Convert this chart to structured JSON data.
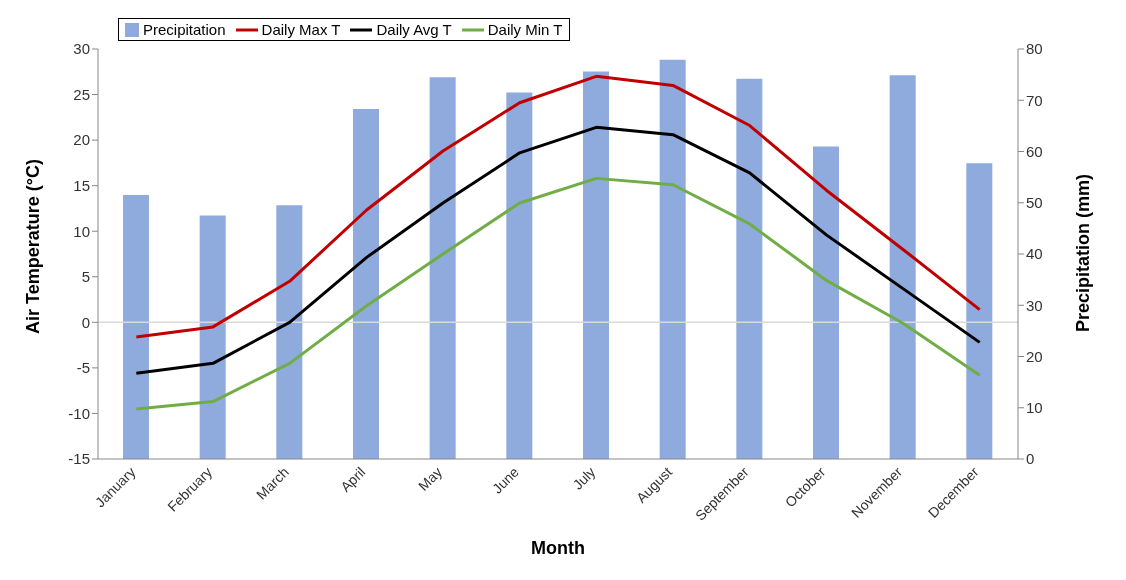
{
  "chart_data": {
    "type": "line",
    "xlabel": "Month",
    "ylabel": "Air Temperature (°C)",
    "y2label": "Precipitation (mm)",
    "categories": [
      "January",
      "February",
      "March",
      "April",
      "May",
      "June",
      "July",
      "August",
      "September",
      "October",
      "November",
      "December"
    ],
    "series": [
      {
        "name": "Precipitation",
        "type": "bar",
        "axis": "y2",
        "color": "#8faadc",
        "values": [
          51.5,
          47.5,
          49.5,
          68.3,
          74.5,
          71.5,
          75.6,
          77.9,
          74.2,
          61.0,
          74.9,
          57.7
        ]
      },
      {
        "name": "Daily Max T",
        "color": "#c00000",
        "values": [
          -1.6,
          -0.5,
          4.5,
          12.3,
          18.8,
          24.1,
          27.0,
          26.0,
          21.6,
          14.5,
          8.0,
          1.4
        ]
      },
      {
        "name": "Daily Avg T",
        "color": "#000000",
        "values": [
          -5.6,
          -4.5,
          0,
          7.1,
          13.1,
          18.6,
          21.4,
          20.6,
          16.4,
          9.6,
          3.7,
          -2.2
        ]
      },
      {
        "name": "Daily Min T",
        "color": "#70ad47",
        "values": [
          -9.5,
          -8.7,
          -4.5,
          1.8,
          7.5,
          13.1,
          15.8,
          15.1,
          10.8,
          4.6,
          -0.1,
          -5.8
        ]
      }
    ],
    "ylim": [
      -15,
      30
    ],
    "yticks": [
      -15,
      -10,
      -5,
      0,
      5,
      10,
      15,
      20,
      25,
      30
    ],
    "y2lim": [
      0,
      80
    ],
    "y2ticks": [
      0,
      10,
      20,
      30,
      40,
      50,
      60,
      70,
      80
    ],
    "ref_lines": [
      {
        "axis": "y",
        "value": 0,
        "color": "#d9d9d9"
      }
    ],
    "grid": false,
    "legend": "top left",
    "marker": "none",
    "line_style": "solid"
  }
}
